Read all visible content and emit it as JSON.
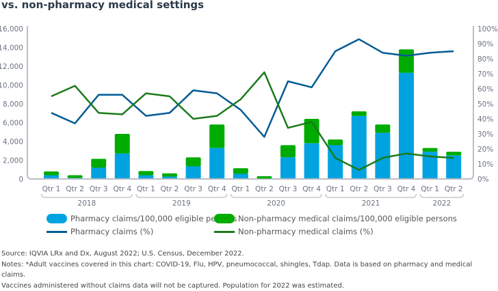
{
  "title": "vs. non-pharmacy medical settings",
  "colors": {
    "pharmacy_bar": "#00a3e0",
    "nonpharmacy_bar": "#00ab00",
    "pharmacy_line": "#005b94",
    "nonpharmacy_line": "#1a7a1a",
    "axis": "#b9bec6",
    "text": "#6b7280"
  },
  "chart_data": {
    "type": "bar+line",
    "categories": [
      "Qtr 1",
      "Qtr 2",
      "Qtr 3",
      "Qtr 4",
      "Qtr 1",
      "Qtr 2",
      "Qtr 3",
      "Qtr 4",
      "Qtr 1",
      "Qtr 2",
      "Qtr 3",
      "Qtr 4",
      "Qtr 1",
      "Qtr 2",
      "Qtr 3",
      "Qtr 4",
      "Qtr 1",
      "Qtr 2"
    ],
    "groups": [
      {
        "label": "2018",
        "count": 4
      },
      {
        "label": "2019",
        "count": 4
      },
      {
        "label": "2020",
        "count": 4
      },
      {
        "label": "2021",
        "count": 4
      },
      {
        "label": "2022",
        "count": 2
      }
    ],
    "y_left": {
      "ticks": [
        "0",
        "2,000",
        "4,000",
        "6,000",
        "8,000",
        "10,000",
        "12,000",
        "14,000",
        "16,000"
      ],
      "range": [
        0,
        16000
      ]
    },
    "y_right": {
      "ticks": [
        "0%",
        "10%",
        "20%",
        "30%",
        "40%",
        "50%",
        "60%",
        "70%",
        "80%",
        "90%",
        "100%"
      ],
      "range": [
        0,
        100
      ]
    },
    "series": [
      {
        "name": "Pharmacy claims/100,000 eligible persons",
        "type": "bar",
        "stack": true,
        "axis": "left",
        "values": [
          400,
          100,
          1200,
          2700,
          400,
          250,
          1350,
          3300,
          550,
          50,
          2300,
          3800,
          3600,
          6700,
          4900,
          11300,
          2900,
          2500
        ]
      },
      {
        "name": "Non-pharmacy medical claims/100,000 eligible persons",
        "type": "bar",
        "stack": true,
        "axis": "left",
        "values": [
          400,
          300,
          950,
          2100,
          450,
          350,
          950,
          2500,
          600,
          250,
          1300,
          2600,
          600,
          500,
          900,
          2500,
          400,
          400
        ]
      },
      {
        "name": "Pharmacy claims (%)",
        "type": "line",
        "axis": "right",
        "values": [
          44,
          37,
          56,
          56,
          42,
          44,
          59,
          57,
          46,
          28,
          65,
          61,
          85,
          93,
          84,
          82,
          84,
          85
        ]
      },
      {
        "name": "Non-pharmacy medical claims (%)",
        "type": "line",
        "axis": "right",
        "values": [
          55,
          62,
          44,
          43,
          57,
          55,
          40,
          42,
          53,
          71,
          34,
          38,
          14,
          6,
          14,
          17,
          15,
          14
        ]
      }
    ],
    "legend_position": "bottom",
    "grid": false
  },
  "notes": [
    "Source: IQVIA LRx and Dx, August 2022; U.S. Census, December 2022.",
    "Notes: *Adult vaccines covered in this chart: COVID-19, Flu, HPV, pneumococcal, shingles, Tdap. Data is based on pharmacy and medical claims.",
    "Vaccines administered without claims data will not be captured. Population for 2022 was estimated."
  ]
}
